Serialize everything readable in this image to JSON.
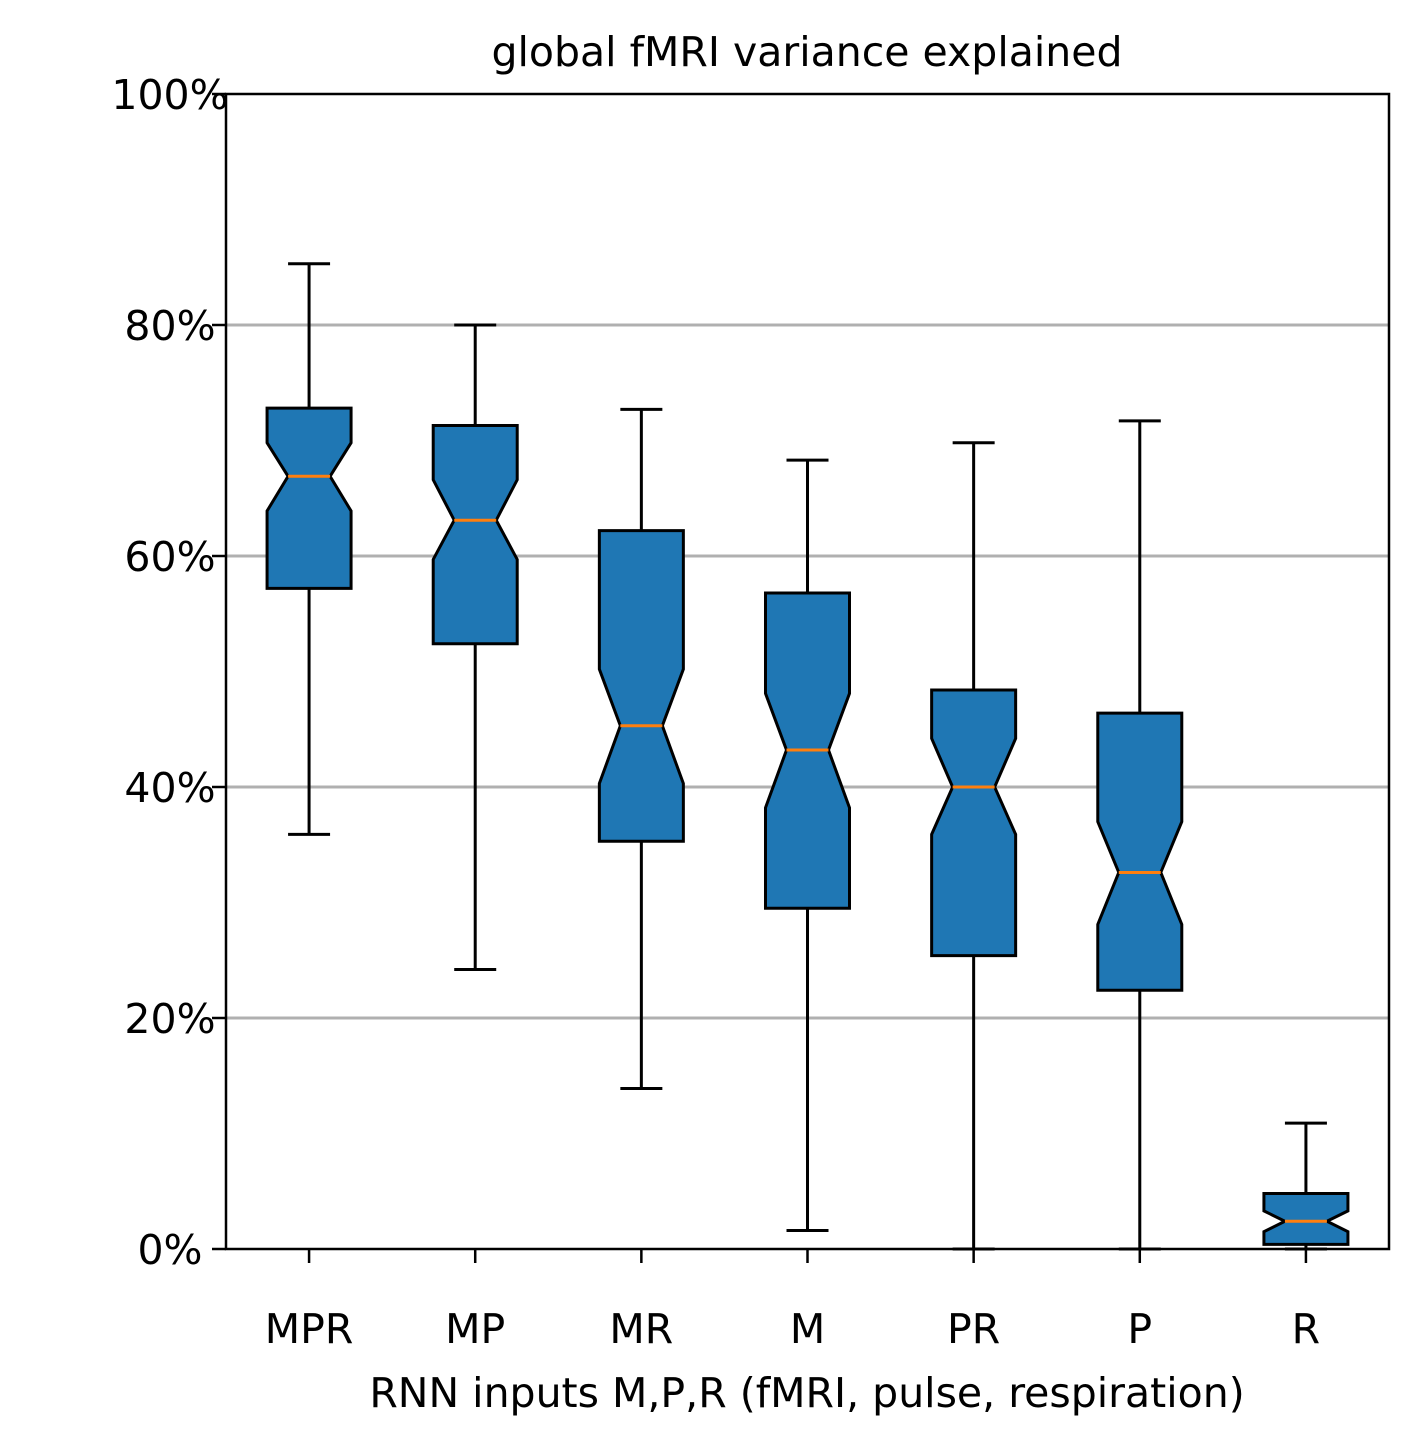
{
  "chart_data": {
    "type": "boxplot",
    "title": "global fMRI variance explained",
    "xlabel": "RNN inputs M,P,R (fMRI, pulse, respiration)",
    "ylabel": "",
    "ylim": [
      0,
      100
    ],
    "y_unit": "%",
    "y_ticks": [
      0,
      20,
      40,
      60,
      80,
      100
    ],
    "y_tick_labels": [
      "0%",
      "20%",
      "40%",
      "60%",
      "80%",
      "100%"
    ],
    "grid": "y",
    "notched": true,
    "categories": [
      "MPR",
      "MP",
      "MR",
      "M",
      "PR",
      "P",
      "R"
    ],
    "boxes": [
      {
        "label": "MPR",
        "whisker_low": 35.9,
        "q1": 57.2,
        "median": 66.9,
        "q3": 72.8,
        "whisker_high": 85.3,
        "notch_low": 63.9,
        "notch_high": 69.8
      },
      {
        "label": "MP",
        "whisker_low": 24.2,
        "q1": 52.4,
        "median": 63.1,
        "q3": 71.3,
        "whisker_high": 80.0,
        "notch_low": 59.7,
        "notch_high": 66.6
      },
      {
        "label": "MR",
        "whisker_low": 13.9,
        "q1": 35.3,
        "median": 45.3,
        "q3": 62.2,
        "whisker_high": 72.7,
        "notch_low": 40.3,
        "notch_high": 50.2
      },
      {
        "label": "M",
        "whisker_low": 1.6,
        "q1": 29.5,
        "median": 43.2,
        "q3": 56.8,
        "whisker_high": 68.3,
        "notch_low": 38.2,
        "notch_high": 48.1
      },
      {
        "label": "PR",
        "whisker_low": 0.0,
        "q1": 25.4,
        "median": 40.0,
        "q3": 48.4,
        "whisker_high": 69.8,
        "notch_low": 35.9,
        "notch_high": 44.2
      },
      {
        "label": "P",
        "whisker_low": 0.0,
        "q1": 22.4,
        "median": 32.6,
        "q3": 46.4,
        "whisker_high": 71.7,
        "notch_low": 28.1,
        "notch_high": 37.0
      },
      {
        "label": "R",
        "whisker_low": 0.0,
        "q1": 0.4,
        "median": 2.4,
        "q3": 4.8,
        "whisker_high": 10.9,
        "notch_low": 1.5,
        "notch_high": 3.3
      }
    ],
    "colors": {
      "box_fill": "#1f77b4",
      "box_edge": "#000000",
      "median": "#ff7f0e",
      "grid": "#b0b0b0",
      "axes": "#000000"
    }
  }
}
